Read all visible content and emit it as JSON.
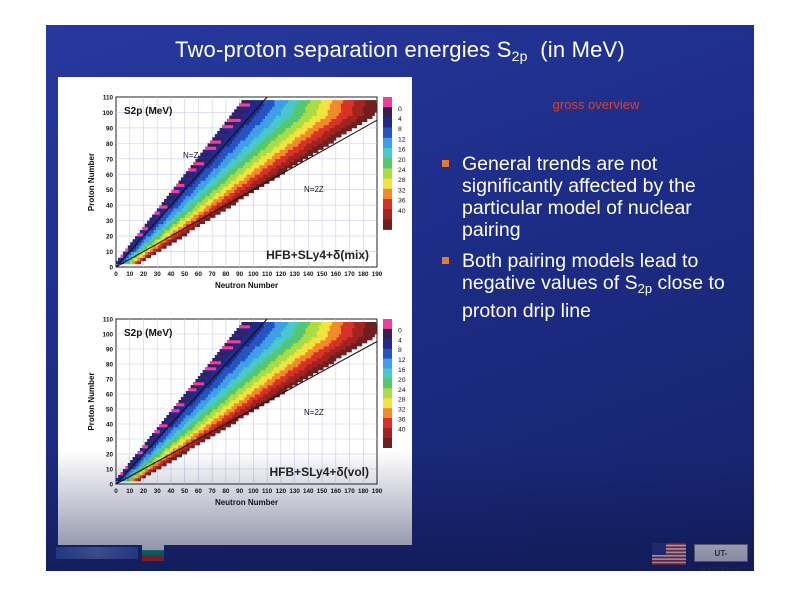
{
  "slide": {
    "title_main": "Two-proton separation energies S",
    "title_sub": "2p",
    "title_suffix": "(in MeV)",
    "subheading": "gross overview",
    "bullets": [
      {
        "text": "General trends are not significantly affected by the particular model of nuclear pairing"
      },
      {
        "pre": "Both pairing models lead to negative values of S",
        "sub": "2p",
        "post": " close to proton drip line"
      }
    ],
    "logos": {
      "right_logo": "UT-BATTELLE"
    }
  },
  "colors": {
    "slide_bg": "#1f2f8f",
    "accent_bullet": "#e07a38",
    "subheading": "#d8412a",
    "scale": [
      "#ee3fa0",
      "#3a1e56",
      "#1f2a8c",
      "#2553c2",
      "#3f9ee8",
      "#47c9c8",
      "#55c76e",
      "#a9dc45",
      "#f2e43c",
      "#f28a2a",
      "#d7312a",
      "#a2231f",
      "#6e1f1e"
    ]
  },
  "plots": [
    {
      "title": "S2p (MeV)",
      "model_label": "HFB+SLy4+δ(mix)",
      "xlabel": "Neutron Number",
      "ylabel": "Proton Number",
      "xticks": [
        "0",
        "10",
        "20",
        "30",
        "40",
        "50",
        "60",
        "70",
        "80",
        "90",
        "100",
        "110",
        "120",
        "130",
        "140",
        "150",
        "160",
        "170",
        "180",
        "190"
      ],
      "yticks": [
        "0",
        "10",
        "20",
        "30",
        "40",
        "50",
        "60",
        "70",
        "80",
        "90",
        "100",
        "110"
      ],
      "annotations": [
        "N=Z",
        "N=2Z"
      ],
      "scale_labels": [
        "0",
        "4",
        "8",
        "12",
        "16",
        "20",
        "24",
        "28",
        "32",
        "36",
        "40"
      ]
    },
    {
      "title": "S2p (MeV)",
      "model_label": "HFB+SLy4+δ(vol)",
      "xlabel": "Neutron Number",
      "ylabel": "Proton Number",
      "xticks": [
        "0",
        "10",
        "20",
        "30",
        "40",
        "50",
        "60",
        "70",
        "80",
        "90",
        "100",
        "110",
        "120",
        "130",
        "140",
        "150",
        "160",
        "170",
        "180",
        "190"
      ],
      "yticks": [
        "0",
        "10",
        "20",
        "30",
        "40",
        "50",
        "60",
        "70",
        "80",
        "90",
        "100",
        "110"
      ],
      "annotations": [
        "N=2Z"
      ],
      "scale_labels": [
        "0",
        "4",
        "8",
        "12",
        "16",
        "20",
        "24",
        "28",
        "32",
        "36",
        "40"
      ]
    }
  ],
  "chart_data": [
    {
      "type": "heatmap",
      "title": "S2p (MeV)",
      "model_label": "HFB+SLy4+δ(mix)",
      "xlabel": "Neutron Number",
      "ylabel": "Proton Number",
      "xlim": [
        0,
        190
      ],
      "ylim": [
        0,
        110
      ],
      "colorbar_range": [
        0,
        40
      ],
      "colorbar_ticks": [
        0,
        4,
        8,
        12,
        16,
        20,
        24,
        28,
        32,
        36,
        40
      ],
      "reference_lines": [
        {
          "label": "N=Z",
          "from": [
            0,
            0
          ],
          "to": [
            110,
            110
          ]
        },
        {
          "label": "N=2Z",
          "from": [
            0,
            0
          ],
          "to": [
            190,
            95
          ]
        }
      ],
      "grid": true
    },
    {
      "type": "heatmap",
      "title": "S2p (MeV)",
      "model_label": "HFB+SLy4+δ(vol)",
      "xlabel": "Neutron Number",
      "ylabel": "Proton Number",
      "xlim": [
        0,
        190
      ],
      "ylim": [
        0,
        110
      ],
      "colorbar_range": [
        0,
        40
      ],
      "colorbar_ticks": [
        0,
        4,
        8,
        12,
        16,
        20,
        24,
        28,
        32,
        36,
        40
      ],
      "reference_lines": [
        {
          "label": "",
          "from": [
            0,
            0
          ],
          "to": [
            110,
            110
          ]
        },
        {
          "label": "N=2Z",
          "from": [
            0,
            0
          ],
          "to": [
            190,
            95
          ]
        }
      ],
      "grid": true
    }
  ]
}
